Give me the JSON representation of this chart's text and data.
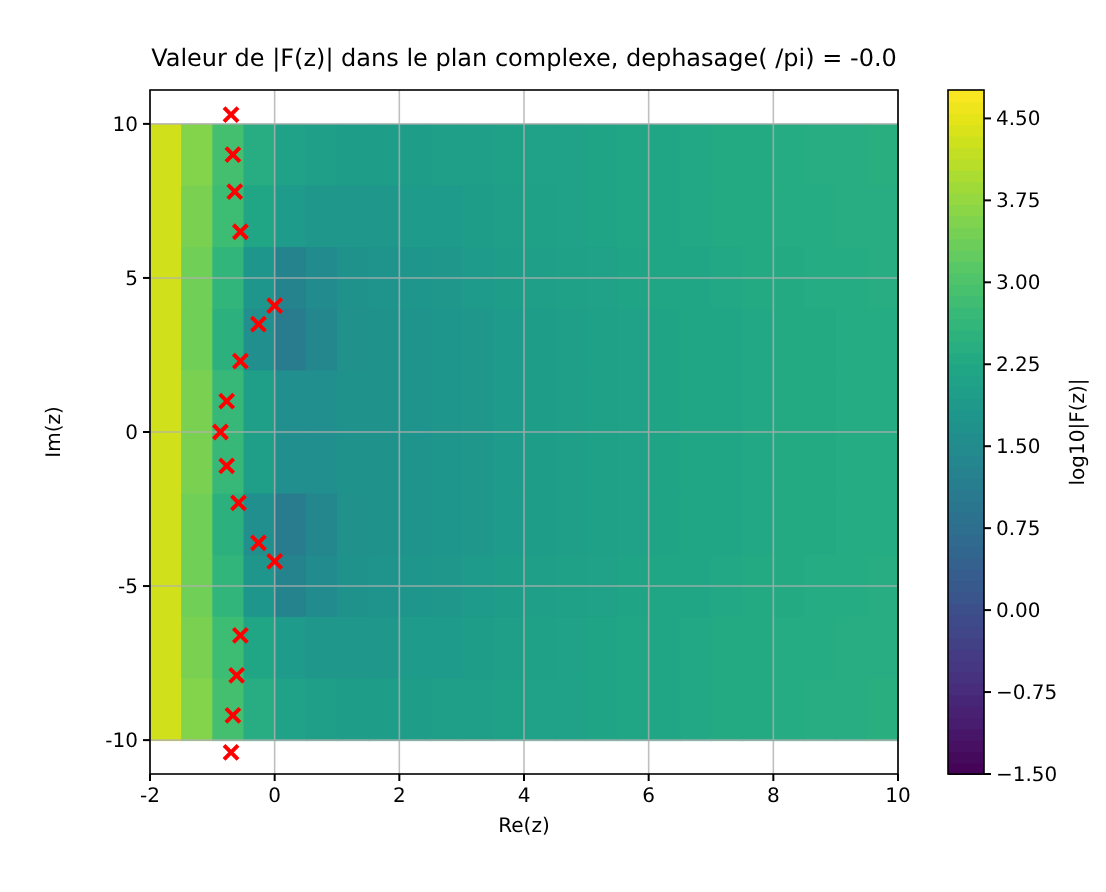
{
  "chart_data": {
    "type": "heatmap",
    "title": "Valeur de |F(z)| dans le plan complexe, dephasage( /pi) = -0.0",
    "xlabel": "Re(z)",
    "ylabel": "Im(z)",
    "clabel": "log10|F(z)|",
    "xlim": [
      -2,
      10
    ],
    "ylim": [
      -11.1,
      11.1
    ],
    "xticks": [
      -2,
      0,
      2,
      4,
      6,
      8,
      10
    ],
    "yticks": [
      -10,
      -5,
      0,
      5,
      10
    ],
    "grid": true,
    "clim": [
      -1.5,
      4.76
    ],
    "cticks": [
      {
        "value": -1.5,
        "label": "−1.50"
      },
      {
        "value": -0.75,
        "label": "−0.75"
      },
      {
        "value": 0,
        "label": "0.00"
      },
      {
        "value": 0.75,
        "label": "0.75"
      },
      {
        "value": 1.5,
        "label": "1.50"
      },
      {
        "value": 2.25,
        "label": "2.25"
      },
      {
        "value": 3,
        "label": "3.00"
      },
      {
        "value": 3.75,
        "label": "3.75"
      },
      {
        "value": 4.5,
        "label": "4.50"
      }
    ],
    "x": [
      -1.75,
      -1.25,
      -0.75,
      -0.25,
      0.25,
      0.75,
      1.25,
      1.75,
      2.25,
      2.75,
      3.25,
      3.75,
      4.25,
      4.75,
      5.25,
      5.75,
      6.25,
      6.75,
      7.25,
      7.75,
      8.25,
      8.75,
      9.25,
      9.75
    ],
    "y": [
      9,
      7,
      5,
      3,
      1,
      -1,
      -3,
      -5,
      -7,
      -9
    ],
    "cells": [
      [
        4.3,
        3.6,
        2.9,
        2.4,
        2.1,
        2.0,
        1.95,
        1.95,
        1.95,
        2.0,
        2.0,
        2.05,
        2.1,
        2.1,
        2.15,
        2.2,
        2.2,
        2.25,
        2.3,
        2.3,
        2.35,
        2.4,
        2.4,
        2.45
      ],
      [
        4.3,
        3.5,
        2.8,
        2.2,
        1.9,
        1.85,
        1.85,
        1.85,
        1.9,
        1.9,
        1.95,
        2.0,
        2.05,
        2.1,
        2.15,
        2.2,
        2.2,
        2.25,
        2.3,
        2.3,
        2.35,
        2.35,
        2.4,
        2.4
      ],
      [
        4.3,
        3.4,
        2.6,
        1.8,
        1.3,
        1.5,
        1.7,
        1.75,
        1.8,
        1.85,
        1.9,
        1.95,
        2.0,
        2.05,
        2.1,
        2.15,
        2.2,
        2.2,
        2.25,
        2.3,
        2.3,
        2.35,
        2.35,
        2.4
      ],
      [
        4.3,
        3.4,
        2.5,
        1.6,
        1.1,
        1.4,
        1.65,
        1.7,
        1.75,
        1.8,
        1.85,
        1.9,
        1.95,
        2.0,
        2.05,
        2.1,
        2.15,
        2.2,
        2.2,
        2.25,
        2.3,
        2.3,
        2.35,
        2.35
      ],
      [
        4.3,
        3.5,
        2.7,
        2.0,
        1.6,
        1.6,
        1.7,
        1.7,
        1.75,
        1.8,
        1.85,
        1.9,
        1.95,
        2.0,
        2.05,
        2.1,
        2.15,
        2.2,
        2.2,
        2.25,
        2.3,
        2.3,
        2.35,
        2.35
      ],
      [
        4.3,
        3.5,
        2.7,
        2.0,
        1.6,
        1.6,
        1.7,
        1.7,
        1.75,
        1.8,
        1.85,
        1.9,
        1.95,
        2.0,
        2.05,
        2.1,
        2.15,
        2.2,
        2.2,
        2.25,
        2.3,
        2.3,
        2.35,
        2.35
      ],
      [
        4.3,
        3.4,
        2.5,
        1.6,
        1.1,
        1.4,
        1.65,
        1.7,
        1.75,
        1.8,
        1.85,
        1.9,
        1.95,
        2.0,
        2.05,
        2.1,
        2.15,
        2.2,
        2.2,
        2.25,
        2.3,
        2.3,
        2.35,
        2.35
      ],
      [
        4.3,
        3.4,
        2.6,
        1.8,
        1.3,
        1.5,
        1.7,
        1.75,
        1.8,
        1.85,
        1.9,
        1.95,
        2.0,
        2.05,
        2.1,
        2.15,
        2.2,
        2.2,
        2.25,
        2.3,
        2.3,
        2.35,
        2.35,
        2.4
      ],
      [
        4.3,
        3.5,
        2.8,
        2.2,
        1.9,
        1.85,
        1.85,
        1.85,
        1.9,
        1.9,
        1.95,
        2.0,
        2.05,
        2.1,
        2.15,
        2.2,
        2.2,
        2.25,
        2.3,
        2.3,
        2.35,
        2.35,
        2.4,
        2.4
      ],
      [
        4.3,
        3.6,
        2.9,
        2.4,
        2.1,
        2.0,
        1.95,
        1.95,
        1.95,
        2.0,
        2.0,
        2.05,
        2.1,
        2.1,
        2.15,
        2.2,
        2.2,
        2.25,
        2.3,
        2.3,
        2.35,
        2.4,
        2.4,
        2.45
      ]
    ],
    "series": [
      {
        "type": "scatter",
        "marker": "cross",
        "color": "#ff0000",
        "x": [
          -0.7,
          -0.67,
          -0.64,
          -0.55,
          0,
          -0.26,
          -0.55,
          -0.77,
          -0.87,
          -0.77,
          -0.58,
          -0.26,
          0,
          -0.55,
          -0.61,
          -0.67,
          -0.7
        ],
        "values": [
          10.3,
          9.0,
          7.8,
          6.5,
          4.1,
          3.5,
          2.3,
          1.0,
          0,
          -1.1,
          -2.3,
          -3.6,
          -4.2,
          -6.6,
          -7.9,
          -9.2,
          -10.4
        ]
      }
    ]
  }
}
